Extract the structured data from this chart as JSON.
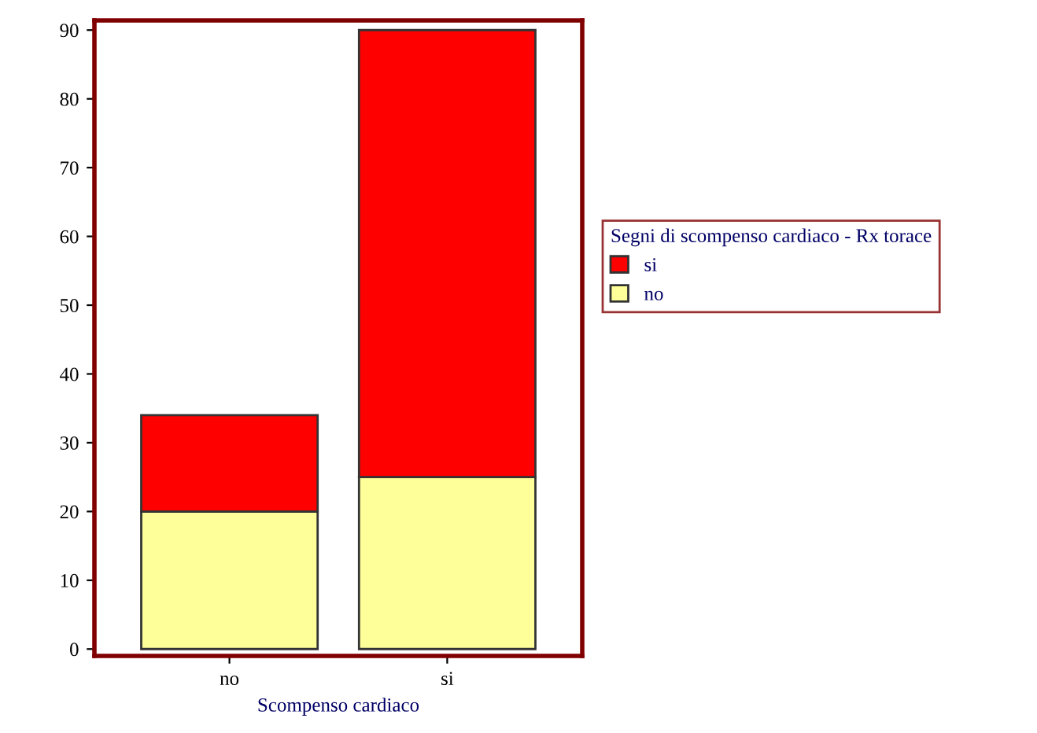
{
  "chart_data": {
    "type": "bar",
    "stacked": true,
    "xlabel": "Scompenso cardiaco",
    "legend_title": "Segni di scompenso cardiaco - Rx torace",
    "categories": [
      "no",
      "si"
    ],
    "series": [
      {
        "name": "no",
        "color": "#ffff99",
        "values": [
          20,
          25
        ]
      },
      {
        "name": "si",
        "color": "#ff0000",
        "values": [
          14,
          65
        ]
      }
    ],
    "ylim": [
      -1,
      91.4
    ],
    "yticks": [
      0,
      10,
      20,
      30,
      40,
      50,
      60,
      70,
      80,
      90
    ],
    "grid": false,
    "legend": "right"
  }
}
